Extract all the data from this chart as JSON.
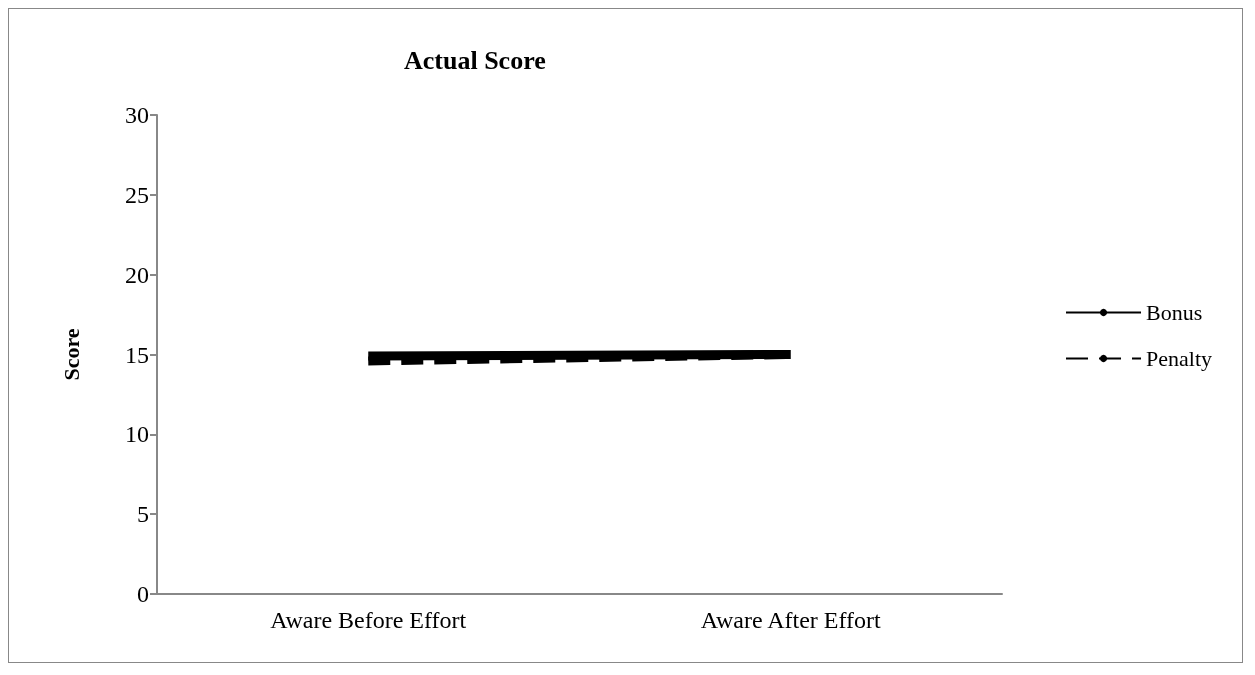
{
  "chart_data": {
    "type": "line",
    "title": "Actual Score",
    "ylabel": "Score",
    "categories": [
      "Aware Before Effort",
      "Aware After Effort"
    ],
    "series": [
      {
        "name": "Bonus",
        "color": "#000000",
        "values": [
          14.9,
          15.0
        ],
        "line_style": "solid"
      },
      {
        "name": "Penalty",
        "color": "#000000",
        "values": [
          14.6,
          15.0
        ],
        "line_style": "dashed"
      }
    ],
    "ylim": [
      0,
      30
    ],
    "yticks": [
      0,
      5,
      10,
      15,
      20,
      25,
      30
    ],
    "grid": false,
    "legend": "right",
    "marker": "none"
  }
}
